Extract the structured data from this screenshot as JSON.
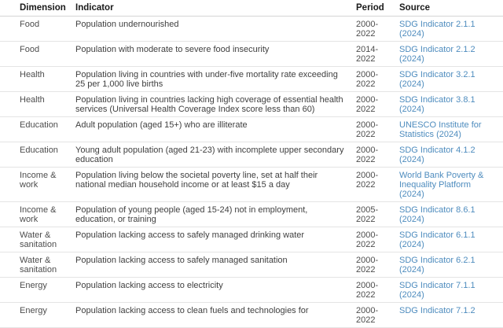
{
  "table": {
    "columns": [
      "Dimension",
      "Indicator",
      "Period",
      "Source"
    ],
    "link_color": "#4e8cbe",
    "rows": [
      {
        "dimension": "Food",
        "indicator": "Population undernourished",
        "period": "2000-2022",
        "source": "SDG Indicator 2.1.1 (2024)"
      },
      {
        "dimension": "Food",
        "indicator": "Population with moderate to severe food insecurity",
        "period": "2014-2022",
        "source": "SDG Indicator 2.1.2 (2024)"
      },
      {
        "dimension": "Health",
        "indicator": "Population living in countries with under-five mortality rate exceeding 25 per 1,000 live births",
        "period": "2000-2022",
        "source": "SDG Indicator 3.2.1 (2024)"
      },
      {
        "dimension": "Health",
        "indicator": "Population living in countries lacking high coverage of essential health services (Universal Health Coverage Index score less than 60)",
        "period": "2000-2022",
        "source": "SDG Indicator 3.8.1 (2024)"
      },
      {
        "dimension": "Education",
        "indicator": "Adult population (aged 15+) who are illiterate",
        "period": "2000-2022",
        "source": "UNESCO Institute for Statistics (2024)"
      },
      {
        "dimension": "Education",
        "indicator": "Young adult population (aged 21-23) with incomplete upper secondary education",
        "period": "2000-2022",
        "source": "SDG Indicator 4.1.2 (2024)"
      },
      {
        "dimension": "Income & work",
        "indicator": "Population living below the societal poverty line, set at half their national median household income or at least $15 a day",
        "period": "2000-2022",
        "source": "World Bank Poverty & Inequality Platform (2024)"
      },
      {
        "dimension": "Income & work",
        "indicator": "Population of young people (aged 15-24) not in employment, education, or training",
        "period": "2005-2022",
        "source": "SDG Indicator 8.6.1 (2024)"
      },
      {
        "dimension": "Water & sanitation",
        "indicator": "Population lacking access to safely managed drinking water",
        "period": "2000-2022",
        "source": "SDG Indicator 6.1.1 (2024)"
      },
      {
        "dimension": "Water & sanitation",
        "indicator": "Population lacking access to safely managed sanitation",
        "period": "2000-2022",
        "source": "SDG Indicator 6.2.1 (2024)"
      },
      {
        "dimension": "Energy",
        "indicator": "Population lacking access to electricity",
        "period": "2000-2022",
        "source": "SDG Indicator 7.1.1 (2024)"
      },
      {
        "dimension": "Energy",
        "indicator": "Population lacking access to clean fuels and technologies for",
        "period": "2000-2022",
        "source": "SDG Indicator 7.1.2"
      }
    ]
  }
}
